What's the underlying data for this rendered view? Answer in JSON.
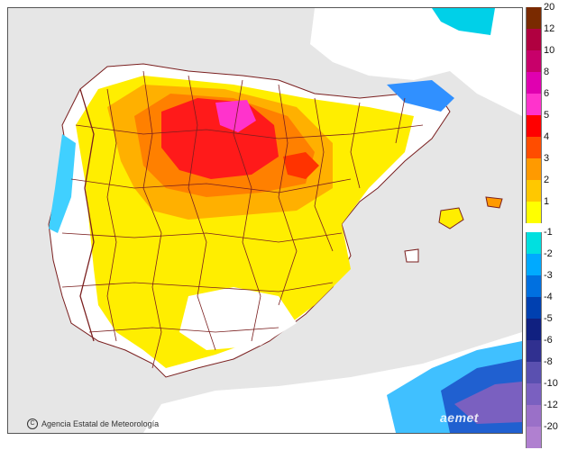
{
  "map": {
    "credit_text": "Agencia Estatal de Meteorología",
    "logo_text": "aemet"
  },
  "legend": {
    "positive": [
      {
        "label": "20",
        "color": "#7a2a00"
      },
      {
        "label": "12",
        "color": "#b00040"
      },
      {
        "label": "10",
        "color": "#c8006a"
      },
      {
        "label": "8",
        "color": "#e000b0"
      },
      {
        "label": "6",
        "color": "#ff33cc"
      },
      {
        "label": "5",
        "color": "#ff0000"
      },
      {
        "label": "4",
        "color": "#ff4d00"
      },
      {
        "label": "3",
        "color": "#ff9a00"
      },
      {
        "label": "2",
        "color": "#ffc800"
      },
      {
        "label": "1",
        "color": "#ffff00"
      }
    ],
    "negative": [
      {
        "label": "-1",
        "color": "#00e0e0"
      },
      {
        "label": "-2",
        "color": "#00aaff"
      },
      {
        "label": "-3",
        "color": "#0070e0"
      },
      {
        "label": "-4",
        "color": "#0040b0"
      },
      {
        "label": "-5",
        "color": "#102080"
      },
      {
        "label": "-6",
        "color": "#303090"
      },
      {
        "label": "-8",
        "color": "#5a50b0"
      },
      {
        "label": "-10",
        "color": "#7a60c0"
      },
      {
        "label": "-12",
        "color": "#9a70c8"
      },
      {
        "label": "-20",
        "color": "#b080d0"
      }
    ]
  }
}
